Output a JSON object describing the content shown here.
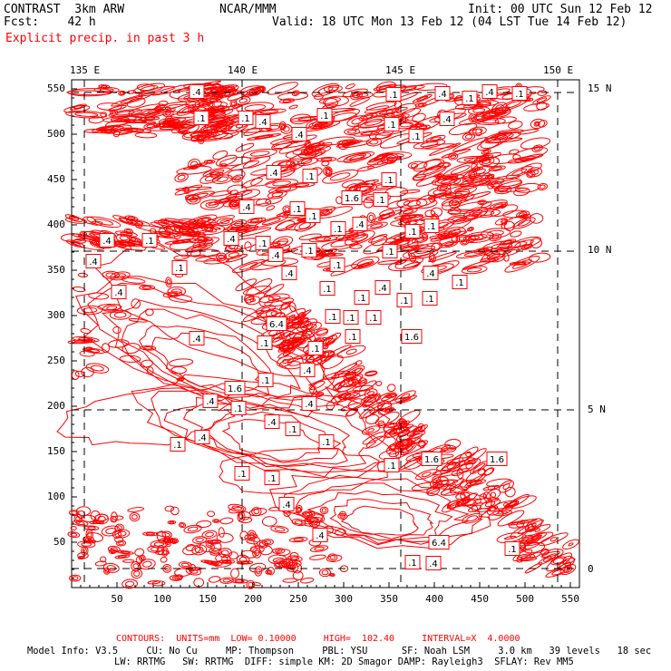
{
  "header": {
    "left1": "CONTRAST  3km ARW",
    "left2": "Fcst:    42 h",
    "center": "NCAR/MMM",
    "init": "Init: 00 UTC Sun 12 Feb 12",
    "valid": "Valid: 18 UTC Mon 13 Feb 12 (04 LST Tue 14 Feb 12)",
    "field": "Explicit precip. in past 3 h"
  },
  "colors": {
    "contour": "#ff0000",
    "frame": "#000000",
    "grid": "#000000"
  },
  "map": {
    "lon_labels": [
      "135 E",
      "140 E",
      "145 E",
      "150 E"
    ],
    "lat_labels": [
      "15 N",
      "10 N",
      "5 N",
      "0"
    ],
    "y_ticks": [
      "550",
      "500",
      "450",
      "400",
      "350",
      "300",
      "250",
      "200",
      "150",
      "100",
      "50"
    ],
    "x_ticks": [
      "50",
      "100",
      "150",
      "200",
      "250",
      "300",
      "350",
      "400",
      "450",
      "500",
      "550"
    ],
    "contour_labels": [
      ".4",
      ".1",
      ".4",
      ".1",
      ".4",
      ".1",
      ".1",
      ".1",
      ".4",
      ".1",
      ".4",
      ".1",
      ".1",
      ".4",
      ".4",
      ".1",
      ".1",
      "1.6",
      ".1",
      ".4",
      ".1",
      ".1",
      ".4",
      ".1",
      ".1",
      ".1",
      ".4",
      ".1",
      ".4",
      ".1",
      ".4",
      ".1",
      ".1",
      ".4",
      ".1",
      ".4",
      ".1",
      ".4",
      ".1",
      ".4",
      ".1",
      ".1",
      ".4",
      ".1",
      ".1",
      "6.4",
      ".1",
      ".1",
      ".1",
      ".1",
      ".1",
      "1.6",
      ".4",
      ".1",
      ".4",
      ".1",
      "1.6",
      ".4",
      ".1",
      ".4",
      ".4",
      ".1",
      ".4",
      ".1",
      ".1",
      ".1",
      ".1",
      "1.6",
      "1.6",
      ".1",
      ".4",
      ".4",
      "6.4",
      ".1",
      ".1",
      ".4"
    ]
  },
  "footer": {
    "contours": "CONTOURS:  UNITS=mm  LOW= 0.10000     HIGH=  102.40     INTERVAL=X  4.0000",
    "model1": "Model Info: V3.5     CU: No Cu     MP: Thompson     PBL: YSU      SF: Noah LSM     3.0 km   39 levels   18 sec",
    "model2": "LW: RRTMG   SW: RRTMG  DIFF: simple KM: 2D Smagor DAMP: Rayleigh3  SFLAY: Rev MM5"
  }
}
